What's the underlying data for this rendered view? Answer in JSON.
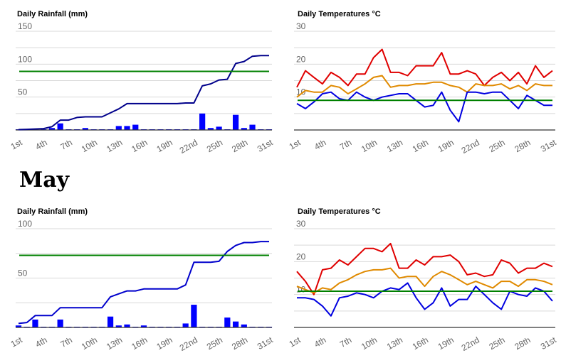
{
  "month_heading": "May",
  "chart_data": [
    {
      "id": "rain-top",
      "type": "bar",
      "title": "Daily Rainfall (mm)",
      "x_tick_labels": [
        "1st",
        "4th",
        "7th",
        "10th",
        "13th",
        "16th",
        "19th",
        "22nd",
        "25th",
        "28th",
        "31st"
      ],
      "y_ticks": [
        50,
        100,
        150
      ],
      "ylim": [
        0,
        150
      ],
      "days": [
        1,
        2,
        3,
        4,
        5,
        6,
        7,
        8,
        9,
        10,
        11,
        12,
        13,
        14,
        15,
        16,
        17,
        18,
        19,
        20,
        21,
        22,
        23,
        24,
        25,
        26,
        27,
        28,
        29,
        30,
        31
      ],
      "series": [
        {
          "kind": "bar",
          "color": "#0000ff",
          "values": [
            0.5,
            0.5,
            0.5,
            0.5,
            3,
            10,
            0.5,
            0.5,
            3,
            0.5,
            0.5,
            0.5,
            6,
            6,
            8,
            0.5,
            0.5,
            0.5,
            0.5,
            0.5,
            0.5,
            0.5,
            25,
            3,
            5,
            0.5,
            23,
            3,
            8,
            0.5,
            0.5
          ]
        },
        {
          "kind": "line",
          "color": "#00008b",
          "values": [
            0.5,
            1,
            1.5,
            2,
            5,
            15,
            15,
            19,
            20,
            20,
            20,
            26,
            32,
            40,
            40,
            40,
            40,
            40,
            40,
            40,
            41,
            41,
            67,
            70,
            76,
            77,
            101,
            104,
            112,
            113,
            113
          ]
        },
        {
          "kind": "reference",
          "color": "#008000",
          "value": 89
        }
      ]
    },
    {
      "id": "temp-top",
      "type": "line",
      "title": "Daily Temperatures °C",
      "x_tick_labels": [
        "1st",
        "4th",
        "7th",
        "10th",
        "13th",
        "16th",
        "19th",
        "22nd",
        "25th",
        "28th",
        "31st"
      ],
      "y_ticks": [
        10,
        20,
        30
      ],
      "ylim": [
        0,
        30
      ],
      "days": [
        1,
        2,
        3,
        4,
        5,
        6,
        7,
        8,
        9,
        10,
        11,
        12,
        13,
        14,
        15,
        16,
        17,
        18,
        19,
        20,
        21,
        22,
        23,
        24,
        25,
        26,
        27,
        28,
        29,
        30,
        31
      ],
      "series": [
        {
          "kind": "line",
          "color": "#e00000",
          "values": [
            13,
            18,
            16,
            14,
            17.5,
            16,
            13.5,
            17,
            17,
            22,
            24.5,
            17.5,
            17.5,
            16.5,
            19.5,
            19.5,
            19.5,
            23.5,
            17,
            17,
            18,
            17,
            13.5,
            16,
            17.5,
            15,
            17.5,
            14,
            19.5,
            16,
            18
          ]
        },
        {
          "kind": "line",
          "color": "#e08a00",
          "values": [
            10,
            12,
            11.5,
            11.5,
            13.5,
            13,
            11,
            12.5,
            14,
            16,
            16.5,
            13,
            13.5,
            13.5,
            14,
            14,
            14.5,
            14.5,
            13.5,
            13,
            11.5,
            14,
            13.5,
            13.5,
            14,
            12.5,
            13.5,
            12,
            14,
            13.5,
            13.5
          ]
        },
        {
          "kind": "line",
          "color": "#0000e0",
          "values": [
            8,
            6.5,
            8.5,
            11,
            11.5,
            9.5,
            9,
            11.5,
            10,
            9,
            10,
            10.5,
            11,
            11,
            9,
            7,
            7.5,
            11.5,
            6,
            2.5,
            11.5,
            11.5,
            11,
            11.5,
            11.5,
            9,
            6.5,
            10.5,
            9,
            7.5,
            7.5
          ]
        },
        {
          "kind": "reference",
          "color": "#008000",
          "value": 9
        }
      ]
    },
    {
      "id": "rain-bottom",
      "type": "bar",
      "title": "Daily Rainfall (mm)",
      "x_tick_labels": [
        "1st",
        "4th",
        "7th",
        "10th",
        "13th",
        "16th",
        "19th",
        "22nd",
        "25th",
        "28th",
        "31st"
      ],
      "y_ticks": [
        50,
        100
      ],
      "ylim": [
        0,
        100
      ],
      "days": [
        1,
        2,
        3,
        4,
        5,
        6,
        7,
        8,
        9,
        10,
        11,
        12,
        13,
        14,
        15,
        16,
        17,
        18,
        19,
        20,
        21,
        22,
        23,
        24,
        25,
        26,
        27,
        28,
        29,
        30,
        31
      ],
      "series": [
        {
          "kind": "bar",
          "color": "#0000ff",
          "values": [
            2,
            0.5,
            8,
            0.5,
            0.5,
            8,
            0.5,
            0.5,
            0.5,
            0.5,
            0.5,
            11,
            2,
            3,
            0.5,
            2,
            0.5,
            0.5,
            0.5,
            0.5,
            4,
            23,
            0.5,
            0.5,
            0.5,
            10,
            6,
            3,
            0.5,
            0.5,
            0.5
          ]
        },
        {
          "kind": "line",
          "color": "#0000cc",
          "values": [
            4,
            5,
            12,
            12,
            12,
            20,
            20,
            20,
            20,
            20,
            20,
            31,
            34,
            37,
            37,
            39,
            39,
            39,
            39,
            39,
            43,
            66,
            66,
            66,
            67,
            77,
            83,
            86,
            86,
            87,
            87
          ]
        },
        {
          "kind": "reference",
          "color": "#008000",
          "value": 73
        }
      ]
    },
    {
      "id": "temp-bottom",
      "type": "line",
      "title": "Daily Temperatures °C",
      "x_tick_labels": [
        "1st",
        "4th",
        "7th",
        "10th",
        "13th",
        "16th",
        "19th",
        "22nd",
        "25th",
        "28th",
        "31st"
      ],
      "y_ticks": [
        10,
        20,
        30
      ],
      "ylim": [
        0,
        30
      ],
      "days": [
        1,
        2,
        3,
        4,
        5,
        6,
        7,
        8,
        9,
        10,
        11,
        12,
        13,
        14,
        15,
        16,
        17,
        18,
        19,
        20,
        21,
        22,
        23,
        24,
        25,
        26,
        27,
        28,
        29,
        30,
        31
      ],
      "series": [
        {
          "kind": "line",
          "color": "#e00000",
          "values": [
            17,
            14,
            10,
            17.5,
            18,
            20.5,
            19,
            21.5,
            24,
            24,
            23,
            25.5,
            18,
            18,
            20.5,
            19,
            21.5,
            21.5,
            22,
            20,
            16,
            16.5,
            15.5,
            16,
            20.5,
            19.5,
            16.5,
            18,
            18,
            19.5,
            18.5
          ]
        },
        {
          "kind": "line",
          "color": "#e08a00",
          "values": [
            12.5,
            11.5,
            10.5,
            12,
            11.5,
            13.5,
            14.5,
            16,
            17,
            17.5,
            17.5,
            18,
            15,
            15.5,
            15.5,
            12.5,
            15.5,
            17,
            16,
            14.5,
            13,
            14,
            13,
            12,
            14,
            14,
            12.5,
            14.5,
            14.5,
            14,
            13
          ]
        },
        {
          "kind": "line",
          "color": "#0000e0",
          "values": [
            9,
            9,
            8.5,
            6.5,
            3.5,
            9,
            9.5,
            10.5,
            10,
            9,
            11,
            12,
            11.5,
            13.5,
            9,
            5.5,
            7.5,
            12,
            6.5,
            8.5,
            8.5,
            12.5,
            10,
            7.5,
            5.5,
            11,
            10,
            9.5,
            12,
            11,
            8
          ]
        },
        {
          "kind": "reference",
          "color": "#008000",
          "value": 11
        }
      ]
    }
  ]
}
